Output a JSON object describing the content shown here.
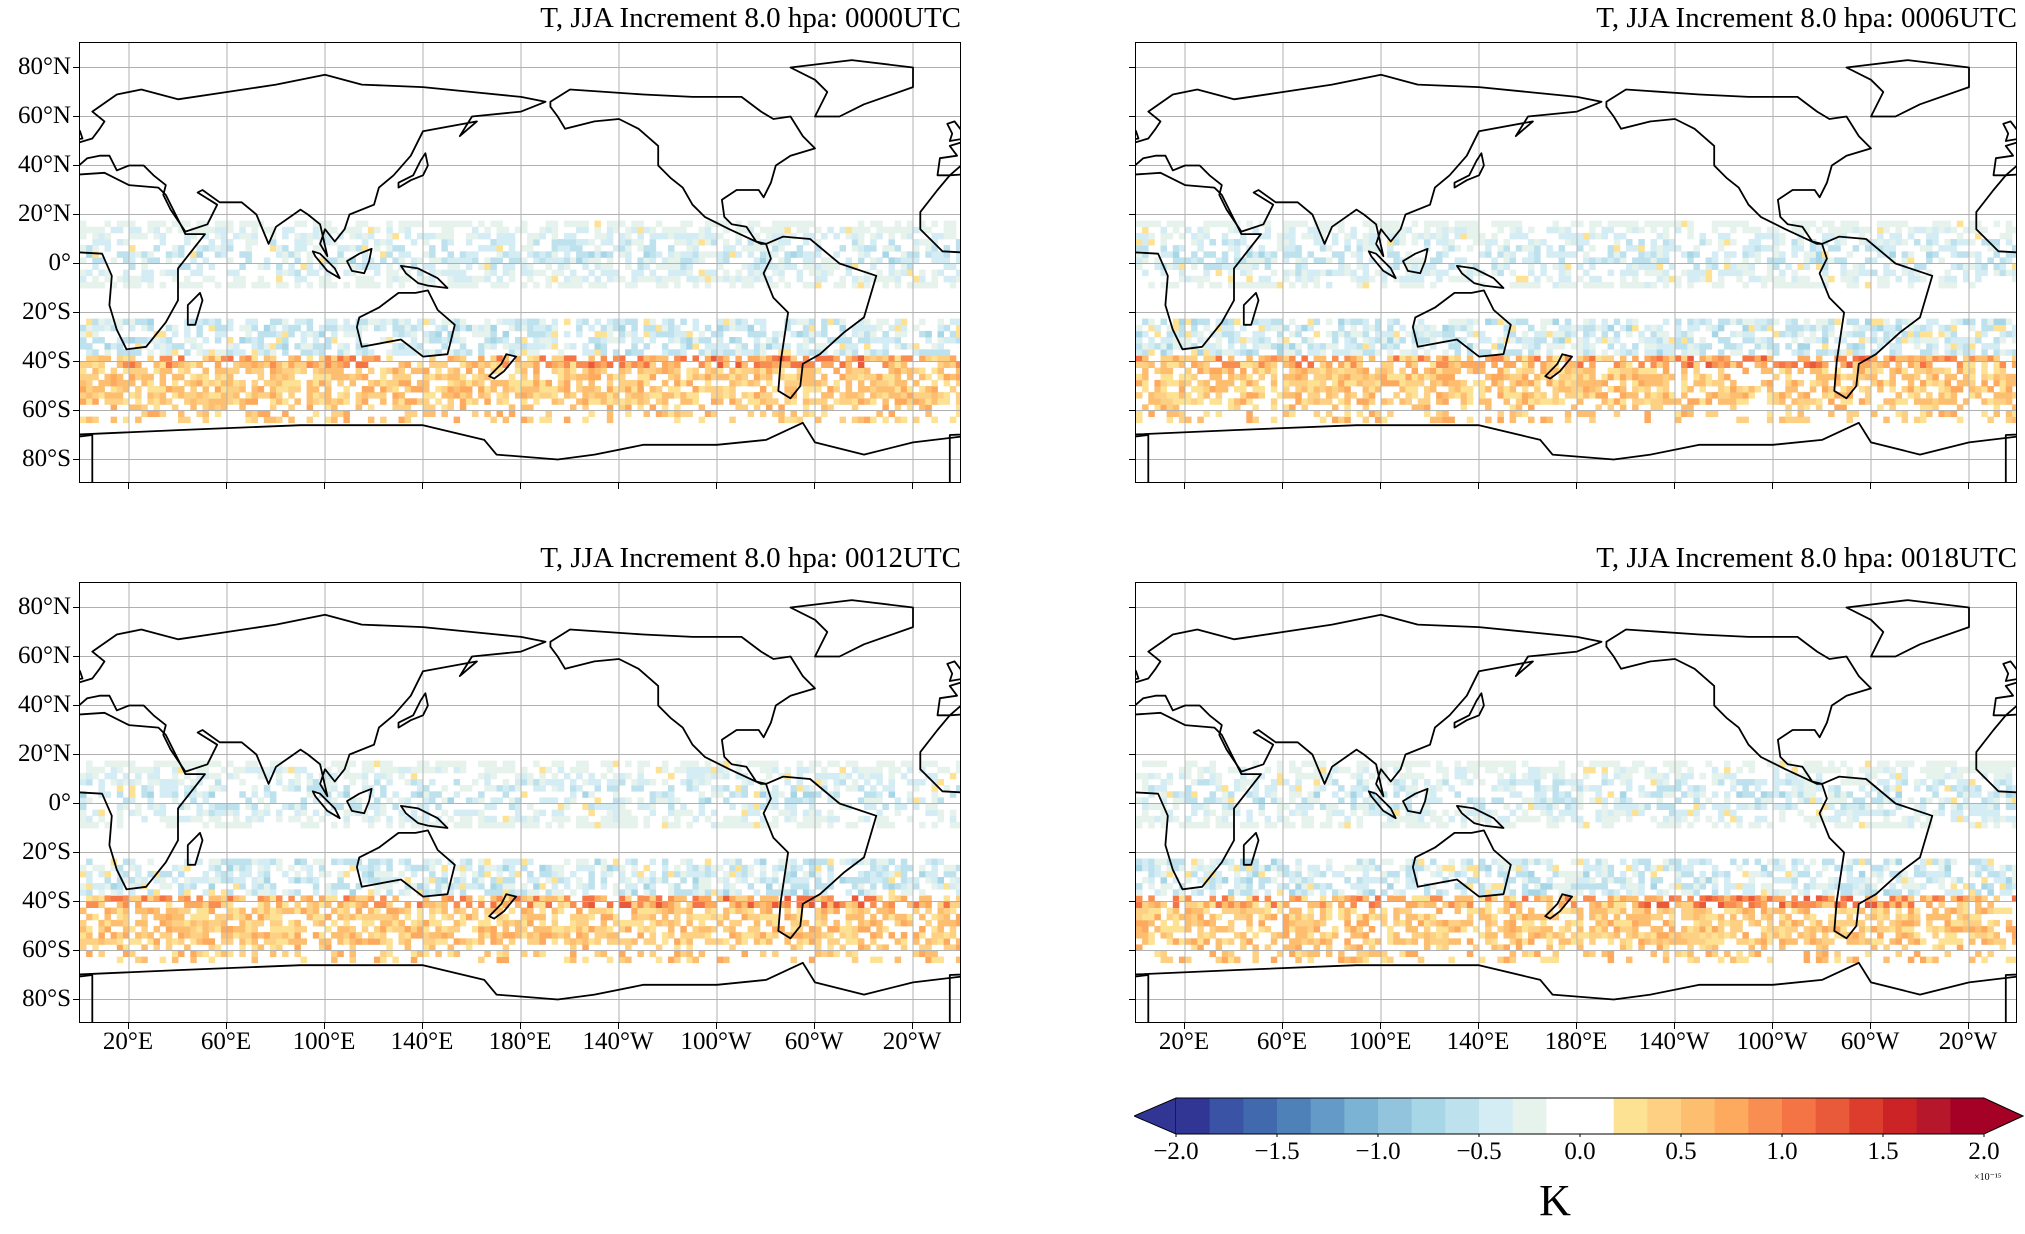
{
  "chart_data": {
    "type": "heatmap",
    "panels": [
      {
        "title": "T, JJA Increment 8.0 hpa: 0000UTC"
      },
      {
        "title": "T, JJA Increment 8.0 hpa: 0006UTC"
      },
      {
        "title": "T, JJA Increment 8.0 hpa: 0012UTC"
      },
      {
        "title": "T, JJA Increment 8.0 hpa: 0018UTC"
      }
    ],
    "projection": "PlateCarree, central longitude 180",
    "xlim": [
      0,
      360
    ],
    "ylim": [
      -90,
      90
    ],
    "grid": true,
    "lat_ticks": [
      {
        "v": 80,
        "label": "80°N"
      },
      {
        "v": 60,
        "label": "60°N"
      },
      {
        "v": 40,
        "label": "40°N"
      },
      {
        "v": 20,
        "label": "20°N"
      },
      {
        "v": 0,
        "label": "0°"
      },
      {
        "v": -20,
        "label": "20°S"
      },
      {
        "v": -40,
        "label": "40°S"
      },
      {
        "v": -60,
        "label": "60°S"
      },
      {
        "v": -80,
        "label": "80°S"
      }
    ],
    "lon_ticks": [
      {
        "v": 20,
        "label": "20°E"
      },
      {
        "v": 60,
        "label": "60°E"
      },
      {
        "v": 100,
        "label": "100°E"
      },
      {
        "v": 140,
        "label": "140°E"
      },
      {
        "v": 180,
        "label": "180°E"
      },
      {
        "v": 220,
        "label": "140°W"
      },
      {
        "v": 260,
        "label": "100°W"
      },
      {
        "v": 300,
        "label": "60°W"
      },
      {
        "v": 340,
        "label": "20°W"
      }
    ],
    "field_pattern": {
      "negative_bands_lat": [
        [
          -10,
          15
        ],
        [
          -38,
          -25
        ]
      ],
      "positive_band_lat": [
        -65,
        -35
      ],
      "typical_magnitude": "0.2 to 1.0 ×10^-15 K"
    },
    "colorbar": {
      "label": "K",
      "scale_label": "×10⁻¹⁵",
      "range": [
        -2.0,
        2.0
      ],
      "extend": "both",
      "ticks": [
        {
          "v": -2.0,
          "label": "−2.0"
        },
        {
          "v": -1.5,
          "label": "−1.5"
        },
        {
          "v": -1.0,
          "label": "−1.0"
        },
        {
          "v": -0.5,
          "label": "−0.5"
        },
        {
          "v": 0.0,
          "label": "0.0"
        },
        {
          "v": 0.5,
          "label": "0.5"
        },
        {
          "v": 1.0,
          "label": "1.0"
        },
        {
          "v": 1.5,
          "label": "1.5"
        },
        {
          "v": 2.0,
          "label": "2.0"
        }
      ],
      "colors": [
        "#313695",
        "#3a53a4",
        "#4169ae",
        "#4f81b9",
        "#649ac8",
        "#7ab3d3",
        "#92c4de",
        "#a7d6e7",
        "#bde2ee",
        "#d4ecf4",
        "#e6f2ec",
        "#ffffff",
        "#ffffff",
        "#fee294",
        "#fdd084",
        "#fdbe70",
        "#fdaa5f",
        "#f98e52",
        "#f57446",
        "#e95a3a",
        "#dd3d2d",
        "#cb2326",
        "#b7172a",
        "#a50026"
      ],
      "under_color": "#313695",
      "over_color": "#a50026"
    }
  }
}
